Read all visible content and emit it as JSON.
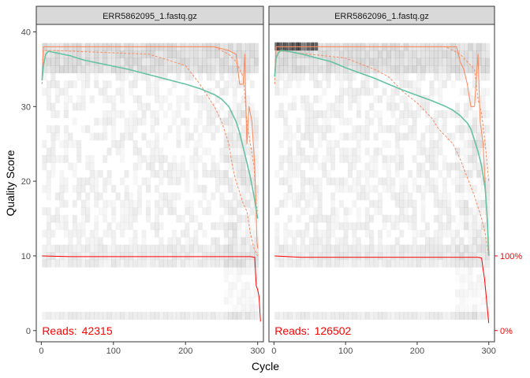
{
  "chart_data": {
    "type": "line",
    "xlabel": "Cycle",
    "ylabel": "Quality Score",
    "xlim": [
      -7,
      308
    ],
    "ylim": [
      -1.5,
      41
    ],
    "x_ticks": [
      0,
      100,
      200,
      300
    ],
    "y_ticks": [
      0,
      10,
      20,
      30,
      40
    ],
    "right_axis_labels": [
      {
        "value": 10,
        "label": "100%"
      },
      {
        "value": 0,
        "label": "0%"
      }
    ],
    "colors": {
      "mean": "#66c2a5",
      "quartile": "#fc8d62",
      "reads": "#ff0000",
      "strip_fill": "#d9d9d9",
      "panel_border": "#333333"
    },
    "panels": [
      {
        "title": "ERR5862095_1.fastq.gz",
        "reads_prefix": "Reads:",
        "reads_value": "42315",
        "mean_quality": [
          [
            1,
            33.5
          ],
          [
            3,
            35.5
          ],
          [
            6,
            37.0
          ],
          [
            10,
            37.4
          ],
          [
            20,
            37.2
          ],
          [
            30,
            37.0
          ],
          [
            40,
            36.8
          ],
          [
            50,
            36.5
          ],
          [
            60,
            36.2
          ],
          [
            80,
            35.8
          ],
          [
            100,
            35.4
          ],
          [
            120,
            35.0
          ],
          [
            140,
            34.5
          ],
          [
            160,
            34.0
          ],
          [
            180,
            33.5
          ],
          [
            200,
            33.0
          ],
          [
            220,
            32.4
          ],
          [
            240,
            31.6
          ],
          [
            250,
            31.0
          ],
          [
            260,
            30.0
          ],
          [
            270,
            28.0
          ],
          [
            275,
            26.5
          ],
          [
            280,
            24.5
          ],
          [
            285,
            22.5
          ],
          [
            290,
            20.5
          ],
          [
            295,
            18.0
          ],
          [
            300,
            15.0
          ]
        ],
        "median_quality": [
          [
            1,
            34.0
          ],
          [
            3,
            38.0
          ],
          [
            20,
            38.0
          ],
          [
            100,
            38.0
          ],
          [
            200,
            38.0
          ],
          [
            240,
            38.0
          ],
          [
            260,
            37.5
          ],
          [
            270,
            37.0
          ],
          [
            275,
            33.0
          ],
          [
            280,
            33.0
          ],
          [
            282,
            37.0
          ],
          [
            285,
            25.0
          ],
          [
            288,
            30.0
          ],
          [
            292,
            28.0
          ],
          [
            296,
            22.0
          ],
          [
            299,
            12.0
          ],
          [
            300,
            11.0
          ]
        ],
        "q25_quality": [
          [
            1,
            33.0
          ],
          [
            3,
            37.5
          ],
          [
            20,
            37.5
          ],
          [
            150,
            37.0
          ],
          [
            200,
            35.5
          ],
          [
            220,
            33.0
          ],
          [
            240,
            30.0
          ],
          [
            250,
            28.0
          ],
          [
            260,
            25.0
          ],
          [
            265,
            22.0
          ],
          [
            270,
            20.0
          ],
          [
            275,
            18.5
          ],
          [
            280,
            17.0
          ],
          [
            285,
            16.0
          ],
          [
            290,
            13.0
          ],
          [
            295,
            11.0
          ],
          [
            300,
            10.0
          ]
        ],
        "q75_quality": [
          [
            1,
            34.0
          ],
          [
            3,
            38.0
          ],
          [
            100,
            38.0
          ],
          [
            200,
            38.0
          ],
          [
            240,
            38.0
          ],
          [
            260,
            37.0
          ],
          [
            270,
            36.0
          ],
          [
            280,
            34.0
          ],
          [
            285,
            28.0
          ],
          [
            290,
            25.0
          ],
          [
            295,
            22.0
          ],
          [
            298,
            17.0
          ],
          [
            300,
            16.0
          ]
        ],
        "reads_fraction": [
          [
            1,
            10.0
          ],
          [
            40,
            9.9
          ],
          [
            100,
            9.9
          ],
          [
            200,
            9.9
          ],
          [
            290,
            9.9
          ],
          [
            296,
            9.8
          ],
          [
            297,
            8.0
          ],
          [
            298,
            6.0
          ],
          [
            300,
            5.5
          ],
          [
            302,
            4.5
          ],
          [
            304,
            1.2
          ]
        ]
      },
      {
        "title": "ERR5862096_1.fastq.gz",
        "reads_prefix": "Reads:",
        "reads_value": "126502",
        "mean_quality": [
          [
            1,
            34.0
          ],
          [
            3,
            36.5
          ],
          [
            6,
            37.2
          ],
          [
            10,
            37.5
          ],
          [
            20,
            37.4
          ],
          [
            40,
            37.0
          ],
          [
            60,
            36.5
          ],
          [
            80,
            36.0
          ],
          [
            100,
            35.2
          ],
          [
            120,
            34.5
          ],
          [
            140,
            33.8
          ],
          [
            160,
            33.0
          ],
          [
            180,
            32.2
          ],
          [
            200,
            31.5
          ],
          [
            220,
            30.8
          ],
          [
            240,
            30.0
          ],
          [
            250,
            29.5
          ],
          [
            260,
            28.8
          ],
          [
            270,
            27.8
          ],
          [
            275,
            27.0
          ],
          [
            280,
            25.5
          ],
          [
            285,
            24.0
          ],
          [
            290,
            22.0
          ],
          [
            295,
            19.0
          ],
          [
            298,
            15.0
          ],
          [
            300,
            10.0
          ]
        ],
        "median_quality": [
          [
            1,
            34.0
          ],
          [
            3,
            38.0
          ],
          [
            100,
            38.0
          ],
          [
            200,
            38.0
          ],
          [
            240,
            38.0
          ],
          [
            255,
            38.0
          ],
          [
            260,
            36.0
          ],
          [
            265,
            35.0
          ],
          [
            270,
            33.0
          ],
          [
            275,
            30.0
          ],
          [
            280,
            30.0
          ],
          [
            285,
            37.0
          ],
          [
            288,
            28.0
          ],
          [
            292,
            25.0
          ],
          [
            296,
            18.0
          ],
          [
            299,
            12.0
          ],
          [
            300,
            10.0
          ]
        ],
        "q25_quality": [
          [
            1,
            33.0
          ],
          [
            3,
            37.5
          ],
          [
            100,
            36.5
          ],
          [
            140,
            35.0
          ],
          [
            160,
            34.0
          ],
          [
            180,
            32.0
          ],
          [
            200,
            30.5
          ],
          [
            220,
            28.5
          ],
          [
            230,
            27.0
          ],
          [
            240,
            26.0
          ],
          [
            250,
            25.0
          ],
          [
            260,
            23.0
          ],
          [
            270,
            20.5
          ],
          [
            280,
            18.0
          ],
          [
            290,
            15.0
          ],
          [
            295,
            13.0
          ],
          [
            300,
            10.0
          ]
        ],
        "q75_quality": [
          [
            1,
            34.0
          ],
          [
            3,
            38.0
          ],
          [
            100,
            38.0
          ],
          [
            200,
            38.0
          ],
          [
            240,
            38.0
          ],
          [
            260,
            37.0
          ],
          [
            270,
            36.0
          ],
          [
            280,
            35.0
          ],
          [
            285,
            31.0
          ],
          [
            290,
            29.0
          ],
          [
            295,
            25.0
          ],
          [
            300,
            20.0
          ]
        ],
        "reads_fraction": [
          [
            1,
            10.0
          ],
          [
            40,
            9.8
          ],
          [
            100,
            9.8
          ],
          [
            200,
            9.8
          ],
          [
            285,
            9.8
          ],
          [
            290,
            9.7
          ],
          [
            292,
            8.2
          ],
          [
            294,
            7.0
          ],
          [
            296,
            5.0
          ],
          [
            298,
            3.0
          ],
          [
            300,
            1.0
          ]
        ]
      }
    ]
  }
}
